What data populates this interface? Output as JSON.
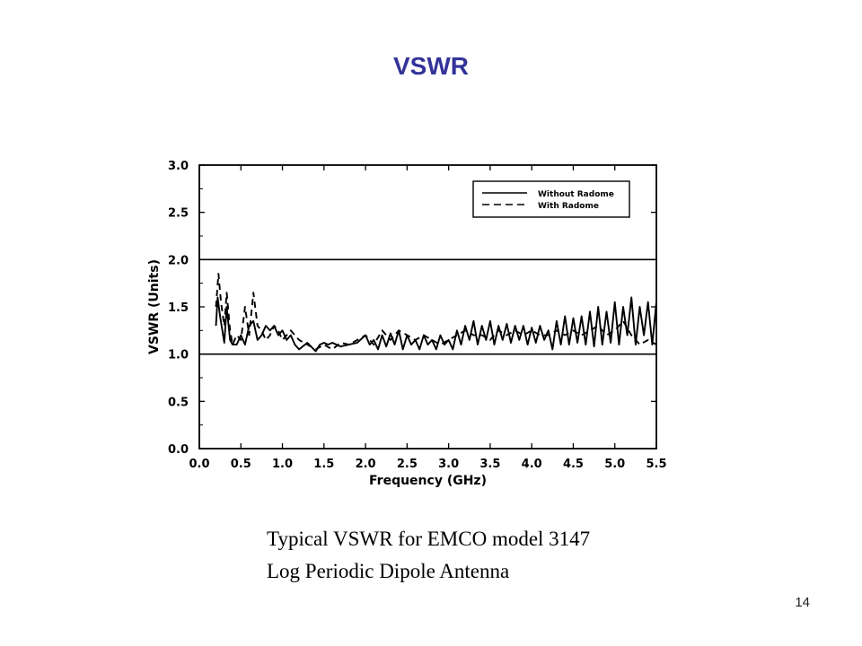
{
  "slide": {
    "title": "VSWR",
    "title_color": "#333399",
    "caption_line1": "Typical VSWR for EMCO model 3147",
    "caption_line2": "Log Periodic Dipole Antenna",
    "page_number": "14"
  },
  "chart_data": {
    "type": "line",
    "xlabel": "Frequency (GHz)",
    "ylabel": "VSWR (Units)",
    "xlim": [
      0.0,
      5.5
    ],
    "ylim": [
      0.0,
      3.0
    ],
    "xticks": [
      "0.0",
      "0.5",
      "1.0",
      "1.5",
      "2.0",
      "2.5",
      "3.0",
      "3.5",
      "4.0",
      "4.5",
      "5.0",
      "5.5"
    ],
    "yticks": [
      "0.0",
      "0.5",
      "1.0",
      "1.5",
      "2.0",
      "2.5",
      "3.0"
    ],
    "reference_lines": [
      1.0,
      2.0
    ],
    "legend_position": "top-right",
    "ink_color": "#000000",
    "series": [
      {
        "name": "Without Radome",
        "style": "solid",
        "x": [
          0.2,
          0.22,
          0.25,
          0.3,
          0.33,
          0.37,
          0.4,
          0.45,
          0.5,
          0.55,
          0.6,
          0.65,
          0.7,
          0.75,
          0.8,
          0.85,
          0.9,
          0.95,
          1.0,
          1.05,
          1.1,
          1.15,
          1.2,
          1.3,
          1.4,
          1.45,
          1.5,
          1.55,
          1.6,
          1.7,
          1.8,
          1.9,
          2.0,
          2.05,
          2.1,
          2.15,
          2.2,
          2.25,
          2.3,
          2.35,
          2.4,
          2.45,
          2.5,
          2.55,
          2.6,
          2.65,
          2.7,
          2.75,
          2.8,
          2.85,
          2.9,
          2.95,
          3.0,
          3.05,
          3.1,
          3.15,
          3.2,
          3.25,
          3.3,
          3.35,
          3.4,
          3.45,
          3.5,
          3.55,
          3.6,
          3.65,
          3.7,
          3.75,
          3.8,
          3.85,
          3.9,
          3.95,
          4.0,
          4.05,
          4.1,
          4.15,
          4.2,
          4.25,
          4.3,
          4.35,
          4.4,
          4.45,
          4.5,
          4.55,
          4.6,
          4.65,
          4.7,
          4.75,
          4.8,
          4.85,
          4.9,
          4.95,
          5.0,
          5.05,
          5.1,
          5.15,
          5.2,
          5.25,
          5.3,
          5.35,
          5.4,
          5.45,
          5.5
        ],
        "y": [
          1.3,
          1.6,
          1.4,
          1.12,
          1.5,
          1.15,
          1.1,
          1.1,
          1.2,
          1.1,
          1.3,
          1.35,
          1.15,
          1.2,
          1.3,
          1.25,
          1.3,
          1.2,
          1.25,
          1.15,
          1.2,
          1.1,
          1.05,
          1.12,
          1.03,
          1.1,
          1.12,
          1.1,
          1.12,
          1.08,
          1.1,
          1.12,
          1.2,
          1.1,
          1.15,
          1.05,
          1.2,
          1.08,
          1.22,
          1.1,
          1.25,
          1.05,
          1.2,
          1.1,
          1.15,
          1.05,
          1.2,
          1.1,
          1.15,
          1.05,
          1.2,
          1.1,
          1.15,
          1.05,
          1.25,
          1.1,
          1.3,
          1.15,
          1.35,
          1.1,
          1.3,
          1.15,
          1.35,
          1.1,
          1.3,
          1.15,
          1.32,
          1.12,
          1.3,
          1.15,
          1.3,
          1.1,
          1.28,
          1.12,
          1.3,
          1.15,
          1.25,
          1.05,
          1.35,
          1.1,
          1.4,
          1.1,
          1.38,
          1.12,
          1.4,
          1.1,
          1.45,
          1.08,
          1.5,
          1.1,
          1.45,
          1.12,
          1.55,
          1.1,
          1.5,
          1.2,
          1.6,
          1.1,
          1.5,
          1.2,
          1.55,
          1.1,
          1.55
        ]
      },
      {
        "name": "With Radome",
        "style": "dashed",
        "x": [
          0.2,
          0.23,
          0.26,
          0.3,
          0.33,
          0.37,
          0.4,
          0.45,
          0.5,
          0.55,
          0.6,
          0.65,
          0.7,
          0.75,
          0.8,
          0.85,
          0.9,
          0.95,
          1.0,
          1.05,
          1.1,
          1.2,
          1.3,
          1.4,
          1.5,
          1.6,
          1.7,
          1.8,
          1.9,
          2.0,
          2.1,
          2.2,
          2.3,
          2.4,
          2.5,
          2.6,
          2.7,
          2.8,
          2.9,
          3.0,
          3.1,
          3.2,
          3.3,
          3.4,
          3.5,
          3.6,
          3.7,
          3.8,
          3.9,
          4.0,
          4.1,
          4.2,
          4.3,
          4.4,
          4.5,
          4.6,
          4.7,
          4.8,
          4.9,
          5.0,
          5.1,
          5.2,
          5.3,
          5.4,
          5.5
        ],
        "y": [
          1.5,
          1.85,
          1.55,
          1.3,
          1.65,
          1.25,
          1.1,
          1.2,
          1.15,
          1.5,
          1.2,
          1.65,
          1.3,
          1.25,
          1.15,
          1.2,
          1.3,
          1.25,
          1.15,
          1.2,
          1.25,
          1.15,
          1.1,
          1.05,
          1.1,
          1.05,
          1.12,
          1.1,
          1.15,
          1.2,
          1.1,
          1.25,
          1.15,
          1.25,
          1.2,
          1.15,
          1.2,
          1.15,
          1.1,
          1.15,
          1.2,
          1.25,
          1.2,
          1.2,
          1.15,
          1.25,
          1.2,
          1.25,
          1.2,
          1.25,
          1.2,
          1.2,
          1.25,
          1.2,
          1.25,
          1.2,
          1.25,
          1.3,
          1.2,
          1.25,
          1.35,
          1.2,
          1.1,
          1.15,
          1.1
        ]
      }
    ]
  }
}
